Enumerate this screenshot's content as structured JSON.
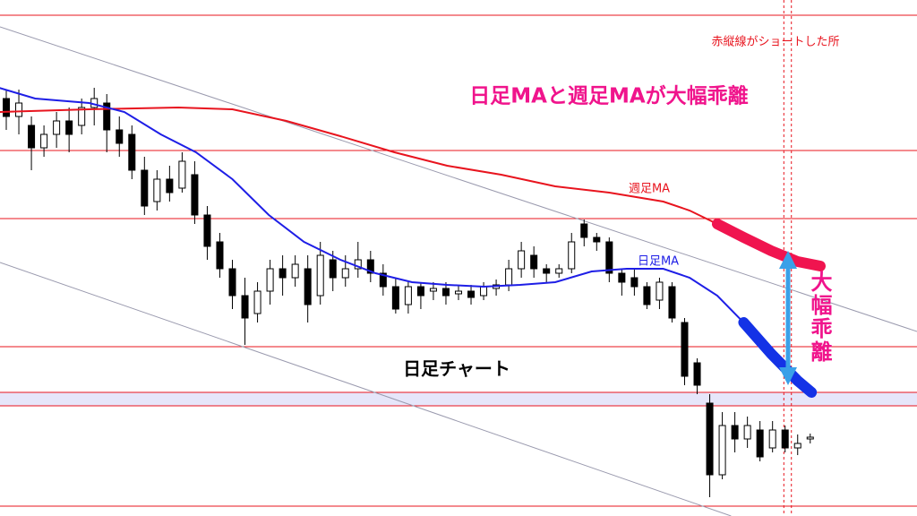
{
  "chart_data": {
    "type": "candlestick",
    "xlim": [
      -0.5,
      72.5
    ],
    "ylim": [
      0,
      576
    ],
    "candle_colors": {
      "up": "#ffffff",
      "down": "#000000",
      "outline": "#000000"
    },
    "ohlc": [
      [
        466,
        476,
        431,
        446
      ],
      [
        446,
        476,
        426,
        461
      ],
      [
        436,
        446,
        386,
        411
      ],
      [
        411,
        436,
        401,
        426
      ],
      [
        426,
        451,
        411,
        441
      ],
      [
        441,
        456,
        406,
        426
      ],
      [
        436,
        466,
        426,
        456
      ],
      [
        456,
        478,
        436,
        466
      ],
      [
        461,
        471,
        406,
        431
      ],
      [
        431,
        446,
        401,
        416
      ],
      [
        426,
        436,
        376,
        386
      ],
      [
        386,
        401,
        336,
        346
      ],
      [
        351,
        386,
        341,
        376
      ],
      [
        376,
        391,
        351,
        361
      ],
      [
        366,
        406,
        361,
        396
      ],
      [
        381,
        396,
        326,
        336
      ],
      [
        336,
        346,
        286,
        301
      ],
      [
        306,
        316,
        266,
        276
      ],
      [
        276,
        286,
        231,
        246
      ],
      [
        246,
        266,
        191,
        221
      ],
      [
        226,
        261,
        216,
        251
      ],
      [
        251,
        286,
        236,
        276
      ],
      [
        276,
        291,
        246,
        266
      ],
      [
        266,
        291,
        256,
        281
      ],
      [
        276,
        291,
        216,
        236
      ],
      [
        246,
        306,
        236,
        291
      ],
      [
        286,
        296,
        251,
        266
      ],
      [
        266,
        291,
        256,
        276
      ],
      [
        276,
        306,
        266,
        286
      ],
      [
        286,
        296,
        261,
        271
      ],
      [
        271,
        281,
        246,
        256
      ],
      [
        256,
        266,
        226,
        231
      ],
      [
        236,
        261,
        226,
        256
      ],
      [
        256,
        261,
        231,
        246
      ],
      [
        251,
        261,
        241,
        254
      ],
      [
        254,
        261,
        236,
        246
      ],
      [
        248,
        258,
        241,
        251
      ],
      [
        251,
        258,
        236,
        244
      ],
      [
        246,
        261,
        241,
        256
      ],
      [
        254,
        264,
        246,
        258
      ],
      [
        258,
        286,
        251,
        276
      ],
      [
        276,
        306,
        266,
        296
      ],
      [
        291,
        301,
        266,
        276
      ],
      [
        276,
        281,
        261,
        271
      ],
      [
        271,
        281,
        266,
        276
      ],
      [
        276,
        316,
        271,
        306
      ],
      [
        326,
        331,
        301,
        311
      ],
      [
        311,
        316,
        296,
        306
      ],
      [
        306,
        311,
        261,
        271
      ],
      [
        271,
        276,
        246,
        261
      ],
      [
        266,
        276,
        246,
        256
      ],
      [
        256,
        261,
        231,
        236
      ],
      [
        241,
        266,
        231,
        261
      ],
      [
        256,
        261,
        216,
        221
      ],
      [
        216,
        221,
        146,
        156
      ],
      [
        171,
        176,
        136,
        146
      ],
      [
        126,
        136,
        21,
        46
      ],
      [
        46,
        116,
        41,
        101
      ],
      [
        101,
        116,
        71,
        86
      ],
      [
        86,
        111,
        76,
        101
      ],
      [
        96,
        106,
        61,
        66
      ],
      [
        76,
        106,
        71,
        96
      ],
      [
        96,
        101,
        71,
        76
      ],
      [
        76,
        91,
        68,
        81
      ],
      [
        86,
        92,
        81,
        88
      ]
    ],
    "lines": [
      {
        "name": "週足MA",
        "color": "#e8141e",
        "highlight_color": "#f0144f",
        "highlight_from": 56.6,
        "x": [
          -0.57,
          6.6,
          13.7,
          18,
          22.3,
          26.6,
          30.9,
          35.1,
          39.4,
          43.7,
          48,
          52.3,
          54.4,
          56.6,
          58.7,
          60.9,
          63,
          64.8
        ],
        "values": [
          451,
          454,
          456,
          454,
          441,
          424,
          406,
          391,
          381,
          368,
          361,
          351,
          341,
          326,
          311,
          296,
          284,
          279
        ]
      },
      {
        "name": "日足MA",
        "color": "#1e1ee6",
        "highlight_color": "#1432e6",
        "highlight_from": 58.7,
        "x": [
          -0.57,
          2.3,
          6.6,
          9.4,
          12.3,
          15.1,
          18,
          20.9,
          23.7,
          26.6,
          29.4,
          32.3,
          35.1,
          38,
          40.9,
          43.7,
          46.6,
          49.4,
          52.3,
          54.4,
          56.6,
          58.7,
          60.9,
          63,
          64.1
        ],
        "values": [
          478,
          466,
          461,
          451,
          426,
          406,
          376,
          336,
          306,
          286,
          271,
          261,
          258,
          256,
          258,
          261,
          273,
          276,
          276,
          266,
          246,
          216,
          181,
          151,
          138
        ]
      }
    ],
    "hlines": [
      559,
      408,
      332,
      189,
      138,
      123,
      11
    ],
    "hline_color": "#e8141e",
    "band": [
      123,
      138
    ],
    "band_color": "#e6e6fa",
    "trendlines": [
      {
        "x": [
          -0.5,
          72.5
        ],
        "values": [
          546,
          206
        ]
      },
      {
        "x": [
          -0.5,
          57.7
        ],
        "values": [
          283,
          0
        ]
      }
    ],
    "vlines": [
      61.9,
      62.5
    ],
    "annotations": [
      "赤縦線がショートした所",
      "日足MAと週足MAが大幅乖離",
      "日足チャート",
      "大幅乖離"
    ]
  }
}
